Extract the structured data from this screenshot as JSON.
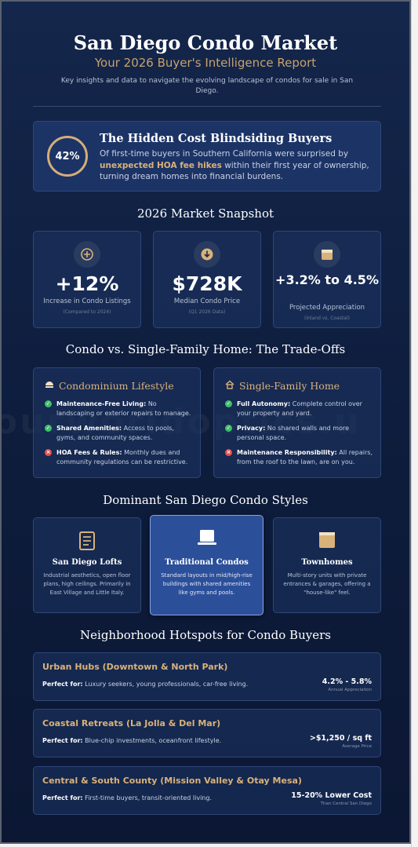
{
  "header": {
    "title": "San Diego Condo Market",
    "subtitle": "Your 2026 Buyer's Intelligence Report",
    "description": "Key insights and data to navigate the evolving landscape of condos for sale in San Diego."
  },
  "watermark": "ourworldoptics.u",
  "alert": {
    "percent": "42%",
    "title": "The Hidden Cost Blindsiding Buyers",
    "body_before": "Of first-time buyers in Southern California were surprised by ",
    "body_highlight": "unexpected HOA fee hikes",
    "body_after": " within their first year of ownership, turning dream homes into financial burdens."
  },
  "snapshot": {
    "title": "2026 Market Snapshot",
    "stats": [
      {
        "icon": "plus-circle-icon",
        "value": "+12%",
        "label": "Increase in Condo Listings",
        "note": "(Compared to 2024)"
      },
      {
        "icon": "download-circle-icon",
        "value": "$728K",
        "label": "Median Condo Price",
        "note": "(Q1 2026 Data)"
      },
      {
        "icon": "calendar-icon",
        "value": "+3.2% to 4.5%",
        "label": "Projected Appreciation",
        "note": "(Inland vs. Coastal)"
      }
    ]
  },
  "tradeoffs": {
    "title": "Condo vs. Single-Family Home: The Trade-Offs",
    "condo": {
      "heading": "Condominium Lifestyle",
      "items": [
        {
          "type": "pro",
          "bold": "Maintenance-Free Living:",
          "text": " No landscaping or exterior repairs to manage."
        },
        {
          "type": "pro",
          "bold": "Shared Amenities:",
          "text": " Access to pools, gyms, and community spaces."
        },
        {
          "type": "con",
          "bold": "HOA Fees & Rules:",
          "text": " Monthly dues and community regulations can be restrictive."
        }
      ]
    },
    "house": {
      "heading": "Single-Family Home",
      "items": [
        {
          "type": "pro",
          "bold": "Full Autonomy:",
          "text": " Complete control over your property and yard."
        },
        {
          "type": "pro",
          "bold": "Privacy:",
          "text": " No shared walls and more personal space."
        },
        {
          "type": "con",
          "bold": "Maintenance Responsibility:",
          "text": " All repairs, from the roof to the lawn, are on you."
        }
      ]
    }
  },
  "styles": {
    "title": "Dominant San Diego Condo Styles",
    "cards": [
      {
        "name": "San Diego Lofts",
        "desc": "Industrial aesthetics, open floor plans, high ceilings. Primarily in East Village and Little Italy."
      },
      {
        "name": "Traditional Condos",
        "desc": "Standard layouts in mid/high-rise buildings with shared amenities like gyms and pools."
      },
      {
        "name": "Townhomes",
        "desc": "Multi-story units with private entrances & garages, offering a \"house-like\" feel."
      }
    ]
  },
  "hotspots": {
    "title": "Neighborhood Hotspots for Condo Buyers",
    "perfect_label": "Perfect for:",
    "items": [
      {
        "name": "Urban Hubs (Downtown & North Park)",
        "perfect": " Luxury seekers, young professionals, car-free living.",
        "value": "4.2% - 5.8%",
        "value_label": "Annual Appreciation"
      },
      {
        "name": "Coastal Retreats (La Jolla & Del Mar)",
        "perfect": " Blue-chip investments, oceanfront lifestyle.",
        "value": ">$1,250 / sq ft",
        "value_label": "Average Price"
      },
      {
        "name": "Central & South County (Mission Valley & Otay Mesa)",
        "perfect": " First-time buyers, transit-oriented living.",
        "value": "15-20% Lower Cost",
        "value_label": "Than Central San Diego"
      }
    ]
  },
  "colors": {
    "background": "#0e1d3d",
    "accent_gold": "#d9b27a",
    "highlight_card": "#2c4f9a",
    "pro": "#3fbf6a",
    "con": "#e05252"
  }
}
